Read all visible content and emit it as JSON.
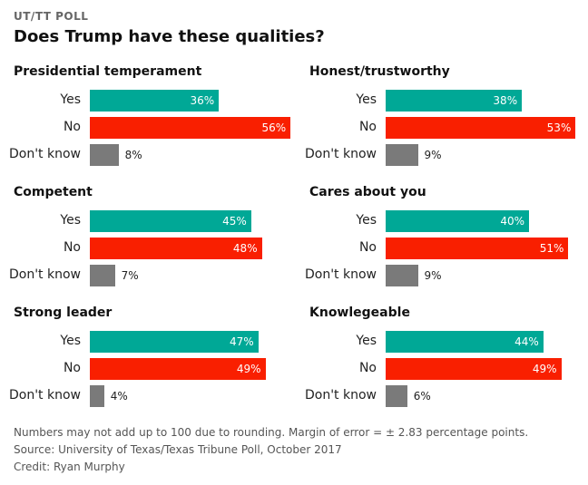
{
  "header": {
    "kicker": "UT/TT POLL",
    "title": "Does Trump have these qualities?"
  },
  "colors": {
    "Yes": "#00a896",
    "No": "#f91f00",
    "Don't know": "#7a7a7a"
  },
  "chart_data": {
    "type": "bar",
    "orientation": "horizontal",
    "title": "Does Trump have these qualities?",
    "categories": [
      "Yes",
      "No",
      "Don't know"
    ],
    "unit": "%",
    "xlim": [
      0,
      100
    ],
    "panels": [
      {
        "title": "Presidential temperament",
        "values": [
          36,
          56,
          8
        ]
      },
      {
        "title": "Honest/trustworthy",
        "values": [
          38,
          53,
          9
        ]
      },
      {
        "title": "Competent",
        "values": [
          45,
          48,
          7
        ]
      },
      {
        "title": "Cares about you",
        "values": [
          40,
          51,
          9
        ]
      },
      {
        "title": "Strong leader",
        "values": [
          47,
          49,
          4
        ]
      },
      {
        "title": "Knowlegeable",
        "values": [
          44,
          49,
          6
        ]
      }
    ]
  },
  "footer": {
    "note": "Numbers may not add up to 100 due to rounding. Margin of error = ± 2.83 percentage points.",
    "source": "Source: University of Texas/Texas Tribune Poll, October 2017",
    "credit": "Credit: Ryan Murphy"
  }
}
